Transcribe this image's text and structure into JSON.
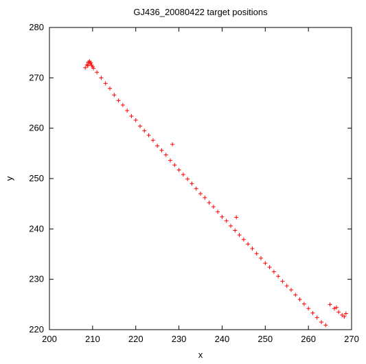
{
  "chart_data": {
    "type": "scatter",
    "title": "GJ436_20080422 target positions",
    "xlabel": "x",
    "ylabel": "y",
    "xlim": [
      200,
      270
    ],
    "ylim": [
      220,
      280
    ],
    "xticks": [
      "200",
      "210",
      "220",
      "230",
      "240",
      "250",
      "260",
      "270"
    ],
    "yticks": [
      "220",
      "230",
      "240",
      "250",
      "260",
      "270",
      "280"
    ],
    "grid": false,
    "legend": "none",
    "marker": "+",
    "marker_color": "#ff0000",
    "series": [
      {
        "points": [
          [
            208.3,
            272.0
          ],
          [
            208.7,
            272.6
          ],
          [
            209.0,
            273.1
          ],
          [
            209.3,
            273.3
          ],
          [
            209.6,
            273.0
          ],
          [
            209.8,
            272.5
          ],
          [
            210.0,
            272.2
          ],
          [
            209.4,
            272.8
          ],
          [
            208.9,
            272.4
          ],
          [
            210.2,
            271.9
          ],
          [
            211.0,
            271.1
          ],
          [
            212.0,
            270.0
          ],
          [
            213.0,
            268.9
          ],
          [
            214.0,
            267.9
          ],
          [
            215.0,
            266.6
          ],
          [
            216.0,
            265.5
          ],
          [
            217.0,
            264.6
          ],
          [
            218.0,
            263.5
          ],
          [
            219.0,
            262.4
          ],
          [
            220.0,
            261.6
          ],
          [
            221.0,
            260.4
          ],
          [
            222.0,
            259.5
          ],
          [
            223.0,
            258.6
          ],
          [
            224.0,
            257.6
          ],
          [
            225.0,
            256.5
          ],
          [
            226.0,
            255.6
          ],
          [
            227.0,
            254.7
          ],
          [
            228.0,
            253.6
          ],
          [
            228.5,
            256.8
          ],
          [
            229.0,
            252.7
          ],
          [
            230.0,
            251.7
          ],
          [
            231.0,
            250.8
          ],
          [
            232.0,
            249.9
          ],
          [
            233.0,
            249.0
          ],
          [
            234.0,
            248.0
          ],
          [
            235.0,
            247.0
          ],
          [
            236.0,
            246.2
          ],
          [
            237.0,
            245.2
          ],
          [
            238.0,
            244.4
          ],
          [
            239.0,
            243.4
          ],
          [
            240.0,
            242.4
          ],
          [
            241.0,
            241.6
          ],
          [
            242.0,
            240.6
          ],
          [
            243.0,
            239.7
          ],
          [
            243.3,
            242.3
          ],
          [
            244.0,
            238.8
          ],
          [
            245.0,
            237.9
          ],
          [
            246.0,
            237.0
          ],
          [
            247.0,
            236.1
          ],
          [
            248.0,
            235.1
          ],
          [
            249.0,
            234.2
          ],
          [
            250.0,
            233.2
          ],
          [
            251.0,
            232.4
          ],
          [
            252.0,
            231.5
          ],
          [
            253.0,
            230.6
          ],
          [
            254.0,
            229.6
          ],
          [
            255.0,
            228.7
          ],
          [
            256.0,
            227.9
          ],
          [
            257.0,
            226.9
          ],
          [
            258.0,
            226.0
          ],
          [
            259.0,
            225.1
          ],
          [
            260.0,
            224.2
          ],
          [
            261.0,
            223.3
          ],
          [
            262.0,
            222.4
          ],
          [
            263.0,
            221.5
          ],
          [
            264.0,
            220.9
          ],
          [
            265.0,
            225.0
          ],
          [
            266.0,
            224.2
          ],
          [
            267.0,
            223.5
          ],
          [
            267.8,
            222.9
          ],
          [
            268.3,
            222.6
          ],
          [
            268.7,
            223.2
          ],
          [
            266.5,
            224.4
          ]
        ]
      }
    ]
  }
}
